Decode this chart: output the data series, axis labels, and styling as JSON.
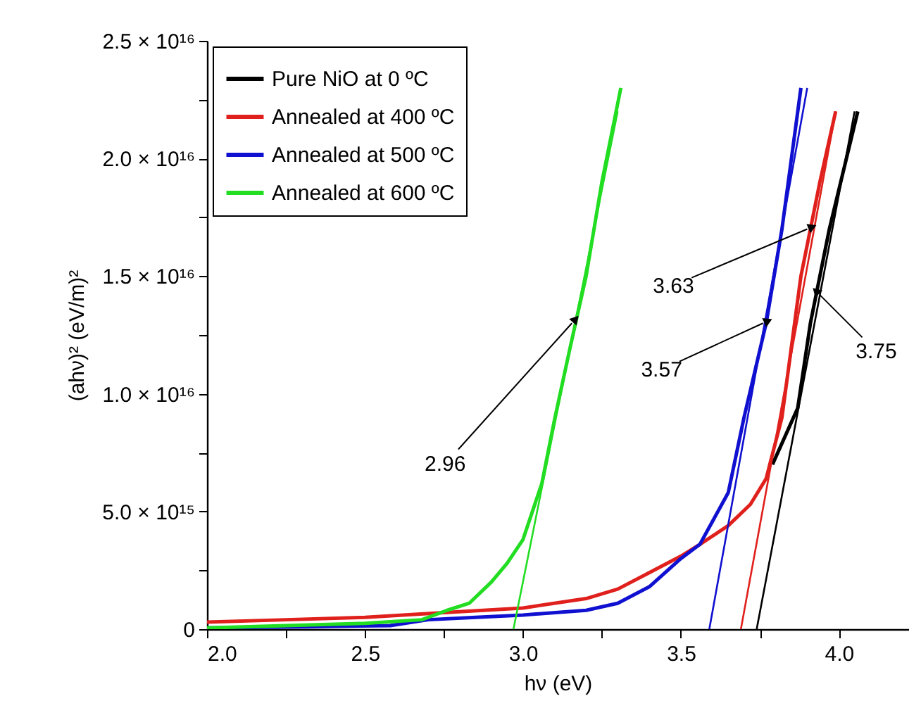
{
  "chart_data": {
    "type": "line",
    "xlabel": "hν (eV)",
    "ylabel": "(ahν)² (eV/m)²",
    "xlim": [
      2.0,
      4.22
    ],
    "ylim": [
      0,
      2.5e+16
    ],
    "xticks": [
      {
        "value": 2.0,
        "label": "2.0"
      },
      {
        "value": 2.25,
        "label": null
      },
      {
        "value": 2.5,
        "label": "2.5"
      },
      {
        "value": 2.75,
        "label": null
      },
      {
        "value": 3.0,
        "label": "3.0"
      },
      {
        "value": 3.25,
        "label": null
      },
      {
        "value": 3.5,
        "label": "3.5"
      },
      {
        "value": 3.75,
        "label": null
      },
      {
        "value": 4.0,
        "label": "4.0"
      }
    ],
    "yticks": [
      {
        "value": 0,
        "label": "0"
      },
      {
        "value": 2500000000000000.0,
        "label": null
      },
      {
        "value": 5000000000000000.0,
        "label": "5.0 × 10¹⁵"
      },
      {
        "value": 7500000000000000.0,
        "label": null
      },
      {
        "value": 1e+16,
        "label": "1.0 × 10¹⁶"
      },
      {
        "value": 1.25e+16,
        "label": null
      },
      {
        "value": 1.5e+16,
        "label": "1.5 × 10¹⁶"
      },
      {
        "value": 1.75e+16,
        "label": null
      },
      {
        "value": 2e+16,
        "label": "2.0 × 10¹⁶"
      },
      {
        "value": 2.25e+16,
        "label": null
      },
      {
        "value": 2.5e+16,
        "label": "2.5 × 10¹⁶"
      }
    ],
    "grid": false,
    "legend": "top left",
    "marker": "none",
    "line_style": "solid",
    "series": [
      {
        "name": "Pure NiO at 0 ºC",
        "color": "#000000",
        "x": [
          3.79,
          3.87,
          3.91,
          3.97,
          4.06
        ],
        "values": [
          7000000000000000.0,
          9400000000000000.0,
          1.3e+16,
          1.7e+16,
          2.2e+16
        ]
      },
      {
        "name": "Annealed at 400 ºC",
        "color": "#e0201c",
        "x": [
          2.0,
          2.25,
          2.5,
          2.75,
          3.0,
          3.2,
          3.3,
          3.4,
          3.5,
          3.56,
          3.65,
          3.72,
          3.77,
          3.82,
          3.88,
          3.94,
          3.99
        ],
        "values": [
          300000000000000.0,
          400000000000000.0,
          500000000000000.0,
          700000000000000.0,
          900000000000000.0,
          1300000000000000.0,
          1700000000000000.0,
          2400000000000000.0,
          3100000000000000.0,
          3600000000000000.0,
          4400000000000000.0,
          5300000000000000.0,
          6400000000000000.0,
          9000000000000000.0,
          1.5e+16,
          1.9e+16,
          2.2e+16
        ]
      },
      {
        "name": "Annealed at 500 ºC",
        "color": "#1010d0",
        "x": [
          2.0,
          2.3,
          2.58,
          2.7,
          2.85,
          3.0,
          3.2,
          3.3,
          3.4,
          3.5,
          3.56,
          3.65,
          3.7,
          3.77,
          3.82,
          3.88
        ],
        "values": [
          50000000000000.0,
          100000000000000.0,
          150000000000000.0,
          400000000000000.0,
          500000000000000.0,
          600000000000000.0,
          800000000000000.0,
          1100000000000000.0,
          1800000000000000.0,
          3000000000000000.0,
          3600000000000000.0,
          5800000000000000.0,
          9000000000000000.0,
          1.3e+16,
          1.7e+16,
          2.3e+16
        ]
      },
      {
        "name": "Annealed at 600 ºC",
        "color": "#22dd22",
        "x": [
          2.0,
          2.25,
          2.5,
          2.68,
          2.76,
          2.83,
          2.9,
          2.95,
          3.0,
          3.06,
          3.1,
          3.15,
          3.2,
          3.25,
          3.31
        ],
        "values": [
          50000000000000.0,
          150000000000000.0,
          250000000000000.0,
          400000000000000.0,
          800000000000000.0,
          1100000000000000.0,
          2000000000000000.0,
          2800000000000000.0,
          3800000000000000.0,
          6200000000000000.0,
          8900000000000000.0,
          1.2e+16,
          1.5e+16,
          1.9e+16,
          2.3e+16
        ]
      },
      {
        "type": "line",
        "color": "#000000",
        "x": [
          3.74,
          4.05
        ],
        "values": [
          0,
          2.2e+16
        ]
      },
      {
        "type": "line",
        "color": "#e0201c",
        "x": [
          3.69,
          3.99
        ],
        "values": [
          0,
          2.2e+16
        ]
      },
      {
        "type": "line",
        "color": "#1010d0",
        "x": [
          3.59,
          3.9
        ],
        "values": [
          0,
          2.3e+16
        ]
      },
      {
        "type": "line",
        "color": "#22dd22",
        "x": [
          2.97,
          3.3
        ],
        "values": [
          0,
          2.2e+16
        ]
      }
    ],
    "annotations": [
      {
        "text": "2.96",
        "x": 3.155,
        "y": 1.3e+16
      },
      {
        "text": "3.63",
        "x": 3.9,
        "y": 1.7e+16
      },
      {
        "text": "3.57",
        "x": 3.76,
        "y": 1.3e+16
      },
      {
        "text": "3.75",
        "x": 3.94,
        "y": 1.42e+16
      }
    ]
  }
}
